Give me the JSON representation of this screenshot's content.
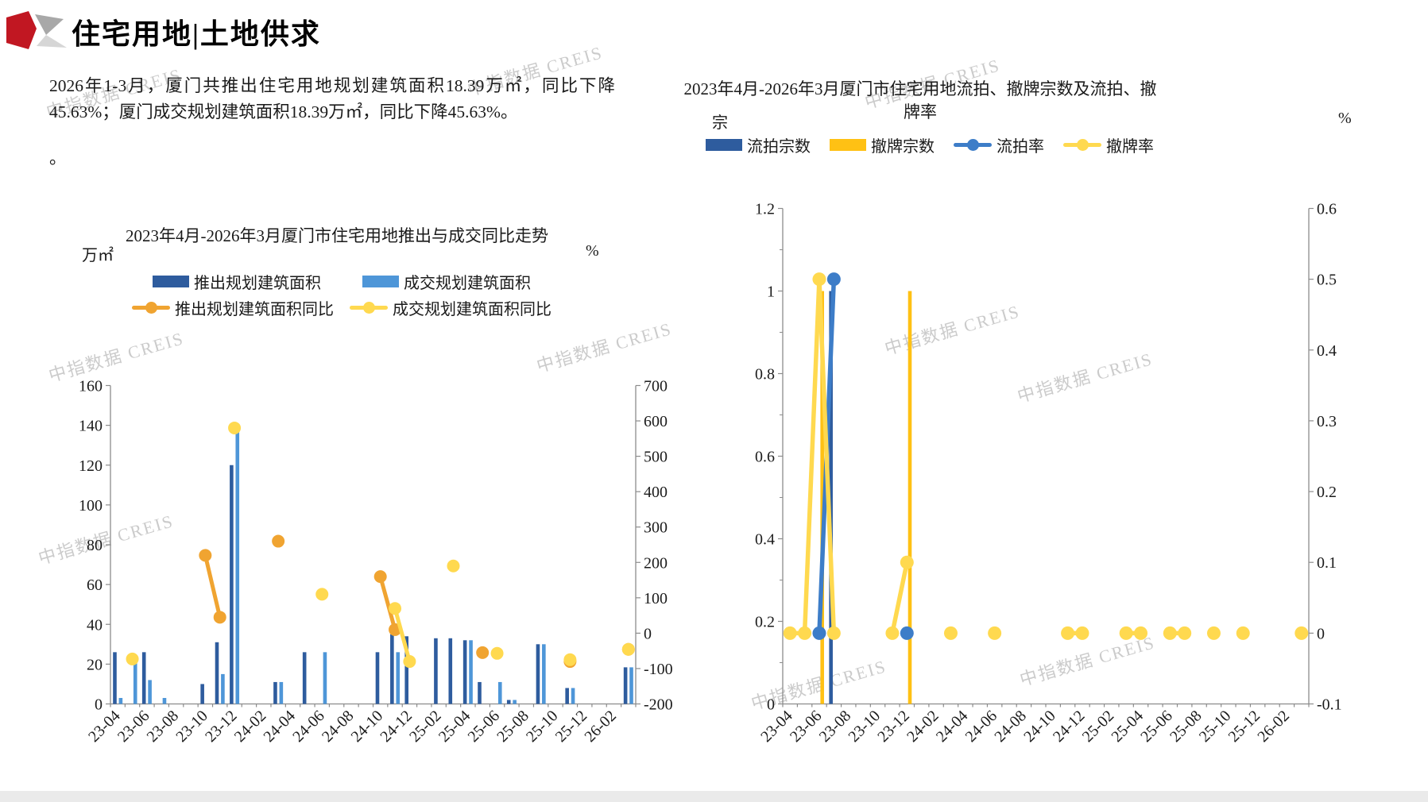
{
  "header": {
    "title": "住宅用地|土地供求",
    "logo_colors": {
      "red": "#C11722",
      "gray_dark": "#A8A8A8",
      "gray_light": "#D6D6D6"
    }
  },
  "summary": {
    "para1": "2026年1-3月，厦门共推出住宅用地规划建筑面积18.39万㎡，同比下降45.63%；厦门成交规划建筑面积18.39万㎡，同比下降45.63%。",
    "para2": "。"
  },
  "watermark": {
    "text": "中指数据 CREIS"
  },
  "chart_data": [
    {
      "id": "supply-demand",
      "type": "bar+line",
      "title": "2023年4月-2026年3月厦门市住宅用地推出与成交同比走势",
      "unit_left": "万㎡",
      "unit_right": "%",
      "legend_position": "top",
      "categories": [
        "23-04",
        "23-05",
        "23-06",
        "23-07",
        "23-08",
        "23-09",
        "23-10",
        "23-11",
        "23-12",
        "24-01",
        "24-02",
        "24-03",
        "24-04",
        "24-05",
        "24-06",
        "24-07",
        "24-08",
        "24-09",
        "24-10",
        "24-11",
        "24-12",
        "25-01",
        "25-02",
        "25-03",
        "25-04",
        "25-05",
        "25-06",
        "25-07",
        "25-08",
        "25-09",
        "25-10",
        "25-11",
        "25-12",
        "26-01",
        "26-02",
        "26-03"
      ],
      "x_tick_labels": [
        "23-04",
        "23-06",
        "23-08",
        "23-10",
        "23-12",
        "24-02",
        "24-04",
        "24-06",
        "24-08",
        "24-10",
        "24-12",
        "25-02",
        "25-04",
        "25-06",
        "25-08",
        "25-10",
        "25-12",
        "26-02"
      ],
      "left_axis": {
        "min": 0,
        "max": 160,
        "tick_values": [
          0,
          20,
          40,
          60,
          80,
          100,
          120,
          140,
          160
        ],
        "tick_labels": [
          "0",
          "20",
          "40",
          "60",
          "80",
          "100",
          "120",
          "140",
          "160"
        ],
        "minor_values": []
      },
      "right_axis": {
        "min": -200,
        "max": 700,
        "tick_values": [
          -200,
          -100,
          0,
          100,
          200,
          300,
          400,
          500,
          600,
          700
        ],
        "tick_labels": [
          "-200",
          "-100",
          "0",
          "100",
          "200",
          "300",
          "400",
          "500",
          "600",
          "700"
        ]
      },
      "series": [
        {
          "name": "推出规划建筑面积",
          "type": "bar",
          "axis": "left",
          "color": "#2E5C9E",
          "values": [
            26,
            0,
            26,
            0,
            0,
            0,
            10,
            31,
            120,
            0,
            0,
            11,
            0,
            26,
            0,
            0,
            0,
            0,
            26,
            35,
            34,
            0,
            33,
            33,
            32,
            11,
            0,
            2,
            0,
            30,
            0,
            8,
            0,
            0,
            0,
            18.4
          ]
        },
        {
          "name": "成交规划建筑面积",
          "type": "bar",
          "axis": "left",
          "color": "#4E96D8",
          "values": [
            3,
            21,
            12,
            3,
            0,
            0,
            0,
            15,
            137,
            0,
            0,
            11,
            0,
            0,
            26,
            0,
            0,
            0,
            0,
            26,
            0,
            0,
            0,
            0,
            32,
            0,
            11,
            2,
            0,
            30,
            0,
            8,
            0,
            0,
            0,
            18.4
          ]
        },
        {
          "name": "推出规划建筑面积同比",
          "type": "line",
          "axis": "right",
          "color": "#F0A431",
          "values": [
            null,
            null,
            null,
            null,
            null,
            null,
            220,
            45,
            null,
            null,
            null,
            260,
            null,
            null,
            null,
            null,
            null,
            null,
            160,
            10,
            null,
            null,
            null,
            null,
            null,
            -55,
            null,
            null,
            null,
            null,
            null,
            -80,
            null,
            null,
            null,
            -45.63
          ]
        },
        {
          "name": "成交规划建筑面积同比",
          "type": "line",
          "axis": "right",
          "color": "#FFD94F",
          "values": [
            null,
            -73,
            null,
            null,
            null,
            null,
            null,
            null,
            580,
            null,
            null,
            null,
            null,
            null,
            110,
            null,
            null,
            null,
            null,
            70,
            -80,
            null,
            null,
            190,
            null,
            null,
            -57,
            null,
            null,
            null,
            null,
            -75,
            null,
            null,
            null,
            -45.63
          ]
        }
      ]
    },
    {
      "id": "auction-withdraw",
      "type": "bar+line",
      "title": "2023年4月-2026年3月厦门市住宅用地流拍、撤牌宗数及流拍、撤牌率",
      "title_lines": [
        "2023年4月-2026年3月厦门市住宅用地流拍、撤牌宗数及流拍、撤",
        "牌率"
      ],
      "unit_left": "宗",
      "unit_right": "%",
      "legend_position": "top",
      "categories": [
        "23-04",
        "23-05",
        "23-06",
        "23-07",
        "23-08",
        "23-09",
        "23-10",
        "23-11",
        "23-12",
        "24-01",
        "24-02",
        "24-03",
        "24-04",
        "24-05",
        "24-06",
        "24-07",
        "24-08",
        "24-09",
        "24-10",
        "24-11",
        "24-12",
        "25-01",
        "25-02",
        "25-03",
        "25-04",
        "25-05",
        "25-06",
        "25-07",
        "25-08",
        "25-09",
        "25-10",
        "25-11",
        "25-12",
        "26-01",
        "26-02",
        "26-03"
      ],
      "x_tick_labels": [
        "23-04",
        "23-06",
        "23-08",
        "23-10",
        "23-12",
        "24-02",
        "24-04",
        "24-06",
        "24-08",
        "24-10",
        "24-12",
        "25-02",
        "25-04",
        "25-06",
        "25-08",
        "25-10",
        "25-12",
        "26-02"
      ],
      "left_axis": {
        "min": 0,
        "max": 1.2,
        "tick_values": [
          0,
          0.2,
          0.4,
          0.6,
          0.8,
          1,
          1.2
        ],
        "tick_labels": [
          "0",
          "0.2",
          "0.4",
          "0.6",
          "0.8",
          "1",
          "1.2"
        ],
        "minor_values": [
          0.1,
          0.3,
          0.5,
          0.7,
          0.9,
          1.1
        ]
      },
      "right_axis": {
        "min": -0.1,
        "max": 0.6,
        "tick_values": [
          -0.1,
          0,
          0.1,
          0.2,
          0.3,
          0.4,
          0.5,
          0.6
        ],
        "tick_labels": [
          "-0.1",
          "0",
          "0.1",
          "0.2",
          "0.3",
          "0.4",
          "0.5",
          "0.6"
        ]
      },
      "series": [
        {
          "name": "流拍宗数",
          "type": "bar",
          "axis": "left",
          "color": "#2E5C9E",
          "values": [
            0,
            0,
            0,
            1,
            0,
            0,
            0,
            0,
            0,
            0,
            0,
            0,
            0,
            0,
            0,
            0,
            0,
            0,
            0,
            0,
            0,
            0,
            0,
            0,
            0,
            0,
            0,
            0,
            0,
            0,
            0,
            0,
            0,
            0,
            0,
            0
          ]
        },
        {
          "name": "撤牌宗数",
          "type": "bar",
          "axis": "left",
          "color": "#FFC114",
          "values": [
            0,
            0,
            1,
            0,
            0,
            0,
            0,
            0,
            1,
            0,
            0,
            0,
            0,
            0,
            0,
            0,
            0,
            0,
            0,
            0,
            0,
            0,
            0,
            0,
            0,
            0,
            0,
            0,
            0,
            0,
            0,
            0,
            0,
            0,
            0,
            0
          ]
        },
        {
          "name": "流拍率",
          "type": "line",
          "axis": "right",
          "color": "#3D7DC8",
          "values": [
            null,
            null,
            0,
            0.5,
            null,
            null,
            null,
            null,
            0,
            null,
            null,
            null,
            null,
            null,
            null,
            null,
            null,
            null,
            null,
            null,
            null,
            null,
            null,
            null,
            null,
            null,
            null,
            null,
            null,
            null,
            null,
            null,
            null,
            null,
            null,
            null
          ]
        },
        {
          "name": "撤牌率",
          "type": "line",
          "axis": "right",
          "color": "#FFD94F",
          "values": [
            0,
            0,
            0.5,
            0,
            null,
            null,
            null,
            0,
            0.1,
            null,
            null,
            0,
            null,
            null,
            0,
            null,
            null,
            null,
            null,
            0,
            0,
            null,
            null,
            0,
            0,
            null,
            0,
            0,
            null,
            0,
            null,
            0,
            null,
            null,
            null,
            0
          ]
        }
      ]
    }
  ]
}
